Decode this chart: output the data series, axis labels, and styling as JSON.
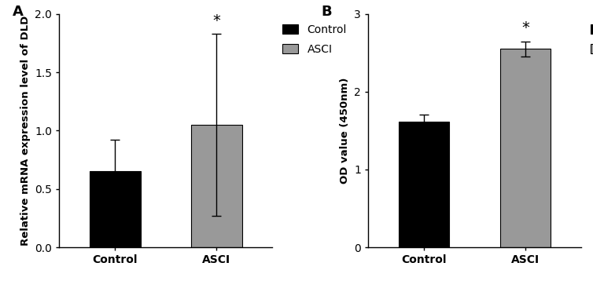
{
  "panel_A": {
    "label": "A",
    "categories": [
      "Control",
      "ASCI"
    ],
    "values": [
      0.65,
      1.05
    ],
    "errors": [
      0.27,
      0.78
    ],
    "colors": [
      "#000000",
      "#999999"
    ],
    "ylabel": "Relative mRNA expression level of DLD",
    "ylim": [
      0,
      2.0
    ],
    "yticks": [
      0.0,
      0.5,
      1.0,
      1.5,
      2.0
    ],
    "significance": [
      false,
      true
    ],
    "sig_label": "*"
  },
  "panel_B": {
    "label": "B",
    "categories": [
      "Control",
      "ASCI"
    ],
    "values": [
      1.62,
      2.55
    ],
    "errors": [
      0.09,
      0.1
    ],
    "colors": [
      "#000000",
      "#999999"
    ],
    "ylabel": "OD value (450nm)",
    "ylim": [
      0,
      3.0
    ],
    "yticks": [
      0,
      1,
      2,
      3
    ],
    "significance": [
      false,
      true
    ],
    "sig_label": "*"
  },
  "legend_labels": [
    "Control",
    "ASCI"
  ],
  "legend_colors": [
    "#000000",
    "#999999"
  ],
  "bar_width": 0.5,
  "font_size": 10,
  "tick_font_size": 10
}
